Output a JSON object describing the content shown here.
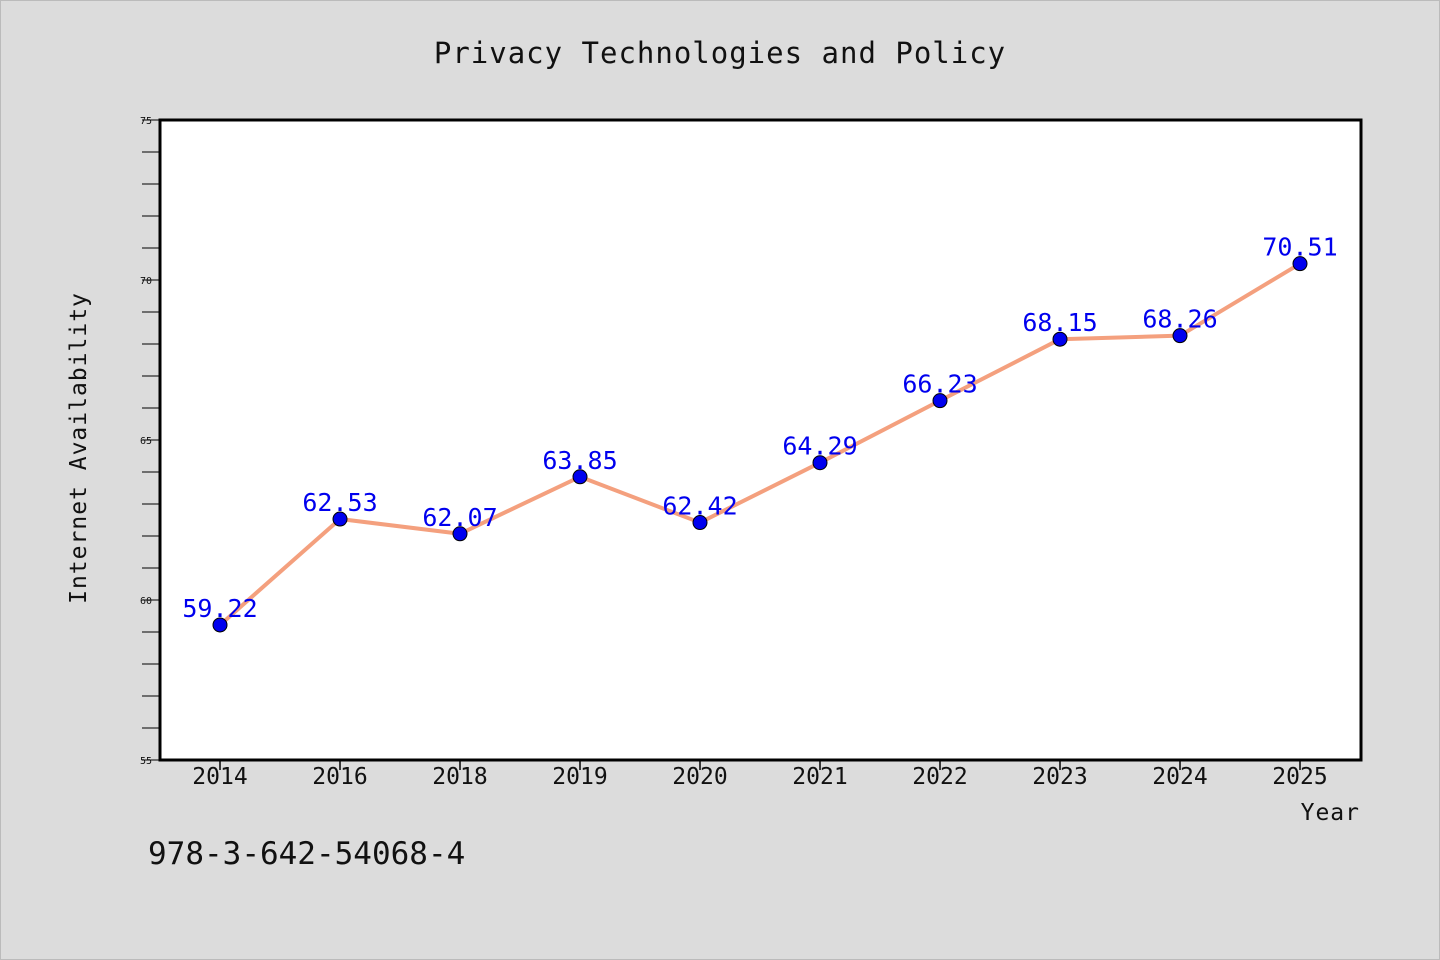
{
  "chart_data": {
    "type": "line",
    "title": "Privacy Technologies and Policy",
    "xlabel": "Year",
    "ylabel": "Internet Availability",
    "categories": [
      "2014",
      "2016",
      "2018",
      "2019",
      "2020",
      "2021",
      "2022",
      "2023",
      "2024",
      "2025"
    ],
    "series": [
      {
        "values": [
          59.22,
          62.53,
          62.07,
          63.85,
          62.42,
          64.29,
          66.23,
          68.15,
          68.26,
          70.51
        ]
      }
    ],
    "data_labels": [
      "59.22",
      "62.53",
      "62.07",
      "63.85",
      "62.42",
      "64.29",
      "66.23",
      "68.15",
      "68.26",
      "70.51"
    ],
    "ylim": [
      55,
      75
    ],
    "y_major_ticks": [
      55,
      60,
      65,
      70,
      75
    ],
    "y_tick_labels": [
      "55",
      "60",
      "65",
      "70",
      "75"
    ],
    "y_minor_step": 1,
    "grid": false,
    "legend": "none",
    "line_color": "#f4a07e",
    "marker_color": "#0000ee",
    "label_color": "#0000ee",
    "background_color": "#dcdcdc",
    "plot_background": "#ffffff"
  },
  "footer": {
    "identifier": "978-3-642-54068-4"
  }
}
